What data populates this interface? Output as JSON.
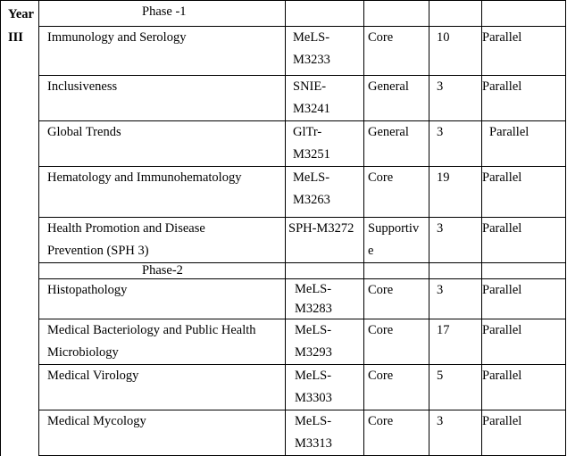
{
  "year_header": "Year",
  "year_value": "III",
  "phases": [
    {
      "label": "Phase -1",
      "rows": [
        {
          "course": "Immunology and Serology",
          "code": "MeLS-M3233",
          "code_lines": [
            "MeLS-",
            "M3233"
          ],
          "type": "Core",
          "ects": "10",
          "mode": "Parallel"
        },
        {
          "course": "Inclusiveness",
          "code": "SNIE-M3241",
          "code_lines": [
            "SNIE-",
            "M3241"
          ],
          "type": "General",
          "ects": "3",
          "mode": "Parallel"
        },
        {
          "course": "Global Trends",
          "code": "GlTr-M3251",
          "code_lines": [
            "GlTr-",
            "M3251"
          ],
          "type": "General",
          "ects": "3",
          "mode": "Parallel"
        },
        {
          "course": "Hematology and Immunohematology",
          "code": "MeLS-M3263",
          "code_lines": [
            "MeLS-",
            "M3263"
          ],
          "type": "Core",
          "ects": "19",
          "mode": "Parallel"
        },
        {
          "course_lines": [
            "Health Promotion and Disease",
            "Prevention (SPH 3)"
          ],
          "code": "SPH-M3272",
          "type_lines": [
            "Supportiv",
            "e"
          ],
          "ects": "3",
          "mode": "Parallel"
        }
      ]
    },
    {
      "label": "Phase-2",
      "rows": [
        {
          "course": "Histopathology",
          "code_lines": [
            "MeLS-",
            "M3283"
          ],
          "type": "Core",
          "ects": "3",
          "mode": "Parallel"
        },
        {
          "course_lines": [
            "Medical Bacteriology and Public Health",
            "Microbiology"
          ],
          "code_lines": [
            "MeLS-",
            "M3293"
          ],
          "type": "Core",
          "ects": "17",
          "mode": "Parallel"
        },
        {
          "course": "Medical Virology",
          "code_lines": [
            "MeLS-",
            "M3303"
          ],
          "type": "Core",
          "ects": "5",
          "mode": "Parallel"
        },
        {
          "course": "Medical Mycology",
          "code_lines": [
            "MeLS-",
            "M3313"
          ],
          "type": "Core",
          "ects": "3",
          "mode": "Parallel"
        }
      ]
    }
  ]
}
